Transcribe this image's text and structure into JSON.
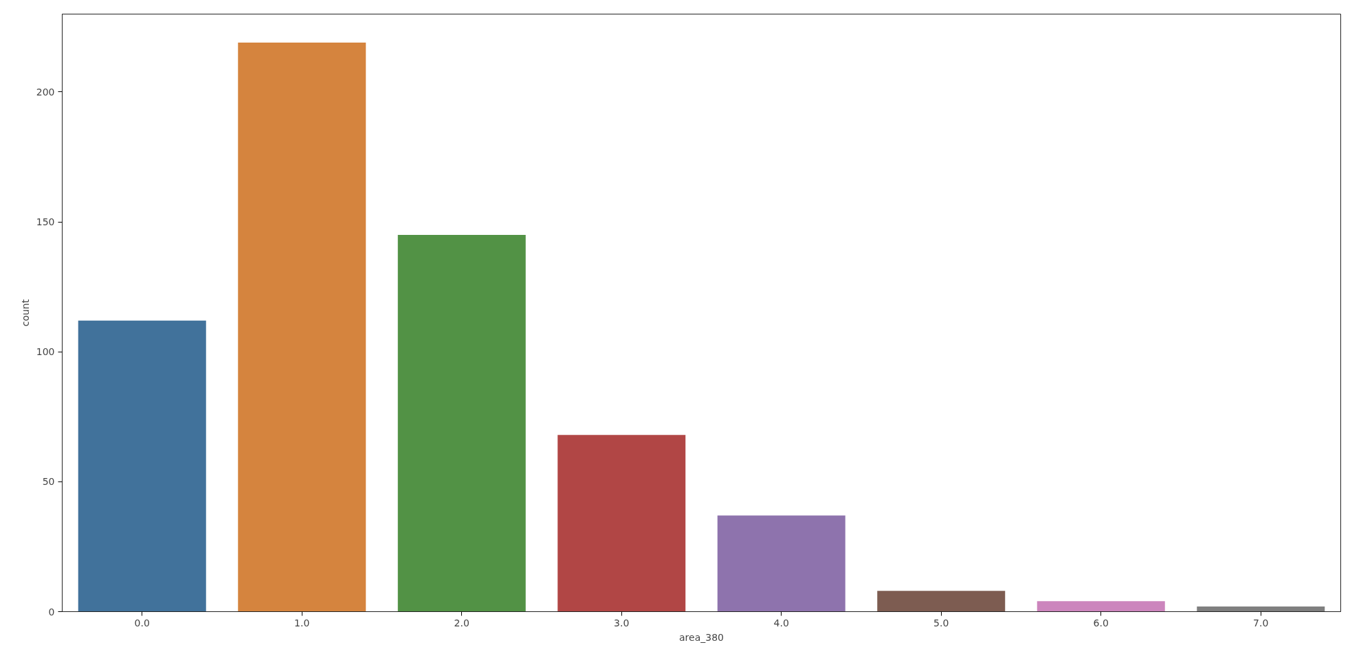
{
  "chart_data": {
    "type": "bar",
    "xlabel": "area_380",
    "ylabel": "count",
    "categories": [
      "0.0",
      "1.0",
      "2.0",
      "3.0",
      "4.0",
      "5.0",
      "6.0",
      "7.0"
    ],
    "values": [
      112,
      219,
      145,
      68,
      37,
      8,
      4,
      2
    ],
    "colors": [
      "#41729b",
      "#d5843e",
      "#529245",
      "#b14645",
      "#8e73ad",
      "#7d5c51",
      "#cc85bd",
      "#7f7f7f"
    ],
    "ylim": [
      0,
      230
    ],
    "yticks": [
      0,
      50,
      100,
      150,
      200
    ],
    "grid": false
  }
}
